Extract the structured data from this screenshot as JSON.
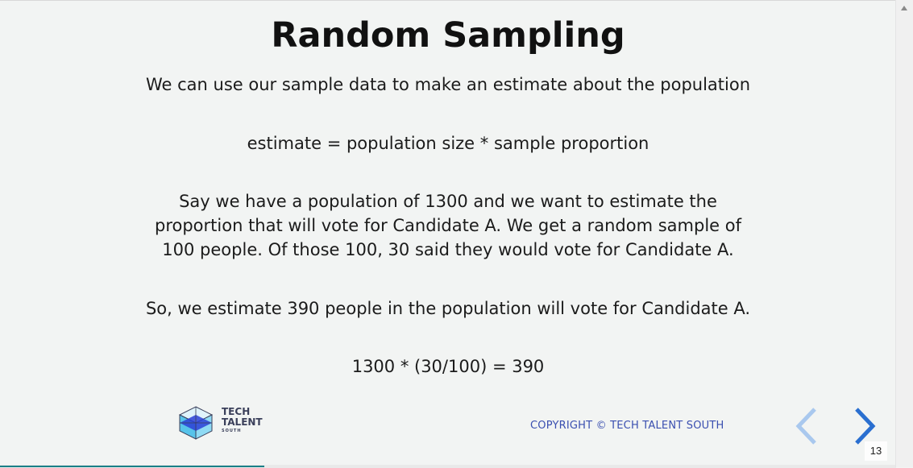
{
  "slide": {
    "title": "Random Sampling",
    "paragraphs": {
      "p1": "We can use our sample data to make an estimate about the population",
      "p2": "estimate = population size * sample proportion",
      "p3_lines": [
        "Say we have a population of 1300 and we want to estimate the",
        "proportion that will vote for Candidate A. We get a random sample of",
        "100 people. Of those 100, 30 said they would vote for Candidate A."
      ],
      "p4": "So, we estimate 390 people in the population will vote for Candidate A.",
      "p5": "1300 * (30/100) = 390"
    }
  },
  "footer": {
    "logo": {
      "line1": "TECH",
      "line2": "TALENT",
      "line3": "SOUTH"
    },
    "copyright": "COPYRIGHT © TECH TALENT SOUTH",
    "page_number": "13"
  },
  "navigation": {
    "prev_icon": "chevron-left-icon",
    "next_icon": "chevron-right-icon"
  },
  "progress": {
    "fraction": 0.295
  },
  "colors": {
    "background": "#f2f4f3",
    "accent_blue": "#2a6fd0",
    "prev_blue_light": "#a9c8ee",
    "copyright_blue": "#3a4fb0",
    "progress_teal": "#1a7f87"
  }
}
